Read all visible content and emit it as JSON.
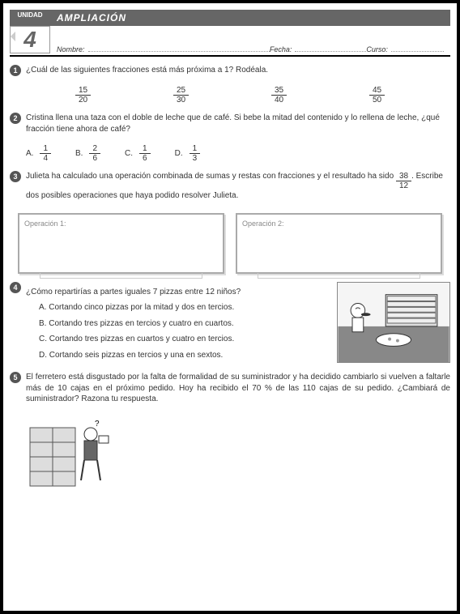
{
  "unit_label": "UNIDAD",
  "unit_num": "4",
  "title": "AMPLIACIÓN",
  "name_label": "Nombre:",
  "date_label": "Fecha:",
  "course_label": "Curso:",
  "q1": {
    "text": "¿Cuál de las siguientes fracciones está más próxima a 1? Rodéala.",
    "fracs": [
      [
        "15",
        "20"
      ],
      [
        "25",
        "30"
      ],
      [
        "35",
        "40"
      ],
      [
        "45",
        "50"
      ]
    ]
  },
  "q2": {
    "text": "Cristina llena una taza con el doble de leche que de café. Si bebe la mitad del contenido y lo rellena de leche, ¿qué fracción tiene ahora de café?",
    "opts": [
      [
        "A.",
        "1",
        "4"
      ],
      [
        "B.",
        "2",
        "6"
      ],
      [
        "C.",
        "1",
        "6"
      ],
      [
        "D.",
        "1",
        "3"
      ]
    ]
  },
  "q3": {
    "text1": "Julieta ha calculado una operación combinada de sumas y restas con fracciones y el resultado ha sido ",
    "fn": "38",
    "fd": "12",
    "text2": ". Escribe dos posibles operaciones que haya podido resolver Julieta.",
    "b1": "Operación 1:",
    "b2": "Operación 2:"
  },
  "q4": {
    "text": "¿Cómo repartirías a partes iguales 7 pizzas entre 12 niños?",
    "a": "A. Cortando cinco pizzas por la mitad y dos en tercios.",
    "b": "B. Cortando tres pizzas en tercios y cuatro en cuartos.",
    "c": "C. Cortando tres pizzas en cuartos y cuatro en tercios.",
    "d": "D. Cortando seis pizzas en tercios y una en sextos."
  },
  "q5": {
    "text": "El ferretero está disgustado por la falta de formalidad de su suministrador y ha decidido cambiarlo si vuelven a faltarle más de 10 cajas en el próximo pedido. Hoy ha recibido el 70 % de las 110 cajas de su pedido. ¿Cambiará de suministrador? Razona tu respuesta."
  }
}
